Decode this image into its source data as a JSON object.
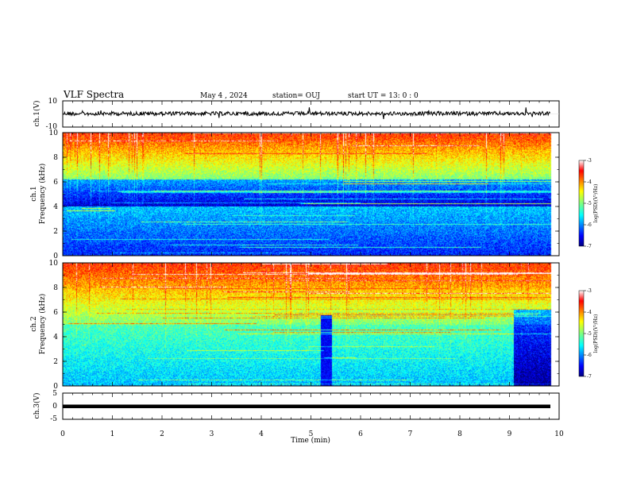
{
  "header": {
    "title": "VLF Spectra",
    "date": "May 4 , 2024",
    "station": "station= OUJ",
    "start": "start UT =  13: 0 : 0"
  },
  "chart_data": [
    {
      "type": "line",
      "name": "ch1-waveform",
      "ylabel": "ch.1(V)",
      "ylim": [
        -10,
        10
      ],
      "y_ticks": [
        "10",
        "-10"
      ],
      "xlim": [
        0,
        10
      ]
    },
    {
      "type": "heatmap",
      "name": "ch1-spectrogram",
      "ylabel_line1": "ch.1",
      "ylabel_line2": "Frequency (kHz)",
      "ylim": [
        0,
        10
      ],
      "y_ticks": [
        "0",
        "2",
        "4",
        "6",
        "8",
        "10"
      ],
      "xlim": [
        0,
        10
      ],
      "colorbar": {
        "label": "log(PSD)(V²/Hz)",
        "ticks": [
          "-3",
          "-4",
          "-5",
          "-6",
          "-7"
        ],
        "range": [
          -7,
          -3
        ]
      }
    },
    {
      "type": "heatmap",
      "name": "ch2-spectrogram",
      "ylabel_line1": "ch.2",
      "ylabel_line2": "Frequency (kHz)",
      "ylim": [
        0,
        10
      ],
      "y_ticks": [
        "0",
        "2",
        "4",
        "6",
        "8",
        "10"
      ],
      "xlim": [
        0,
        10
      ],
      "colorbar": {
        "label": "log(PSD)(V²/Hz)",
        "ticks": [
          "-3",
          "-4",
          "-5",
          "-6",
          "-7"
        ],
        "range": [
          -7,
          -3
        ]
      }
    },
    {
      "type": "line",
      "name": "ch3-waveform",
      "ylabel": "ch.3(V)",
      "ylim": [
        -5,
        5
      ],
      "y_ticks": [
        "5",
        "0",
        "-5"
      ],
      "xlim": [
        0,
        10
      ],
      "xlabel": "Time (min)",
      "x_ticks": [
        "0",
        "1",
        "2",
        "3",
        "4",
        "5",
        "6",
        "7",
        "8",
        "9",
        "10"
      ]
    }
  ]
}
